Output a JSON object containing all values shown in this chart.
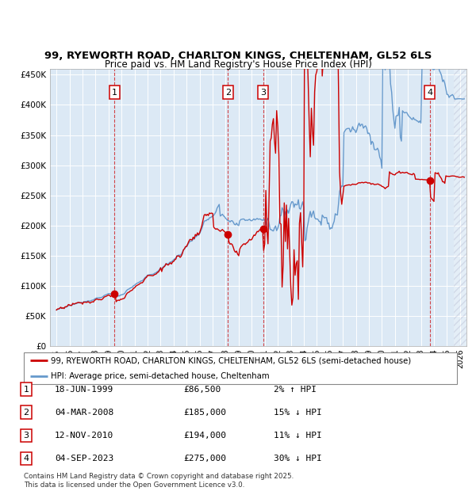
{
  "title1": "99, RYEWORTH ROAD, CHARLTON KINGS, CHELTENHAM, GL52 6LS",
  "title2": "Price paid vs. HM Land Registry's House Price Index (HPI)",
  "bg_color": "#dce9f5",
  "line1_color": "#cc0000",
  "line2_color": "#6699cc",
  "ylim": [
    0,
    460000
  ],
  "yticks": [
    0,
    50000,
    100000,
    150000,
    200000,
    250000,
    300000,
    350000,
    400000,
    450000
  ],
  "xlim_start": 1994.5,
  "xlim_end": 2026.5,
  "sale_dates": [
    1999.46,
    2008.17,
    2010.87,
    2023.67
  ],
  "sale_prices": [
    86500,
    185000,
    194000,
    275000
  ],
  "sale_labels": [
    "1",
    "2",
    "3",
    "4"
  ],
  "legend_line1": "99, RYEWORTH ROAD, CHARLTON KINGS, CHELTENHAM, GL52 6LS (semi-detached house)",
  "legend_line2": "HPI: Average price, semi-detached house, Cheltenham",
  "table_data": [
    [
      "1",
      "18-JUN-1999",
      "£86,500",
      "2% ↑ HPI"
    ],
    [
      "2",
      "04-MAR-2008",
      "£185,000",
      "15% ↓ HPI"
    ],
    [
      "3",
      "12-NOV-2010",
      "£194,000",
      "11% ↓ HPI"
    ],
    [
      "4",
      "04-SEP-2023",
      "£275,000",
      "30% ↓ HPI"
    ]
  ],
  "footnote": "Contains HM Land Registry data © Crown copyright and database right 2025.\nThis data is licensed under the Open Government Licence v3.0."
}
